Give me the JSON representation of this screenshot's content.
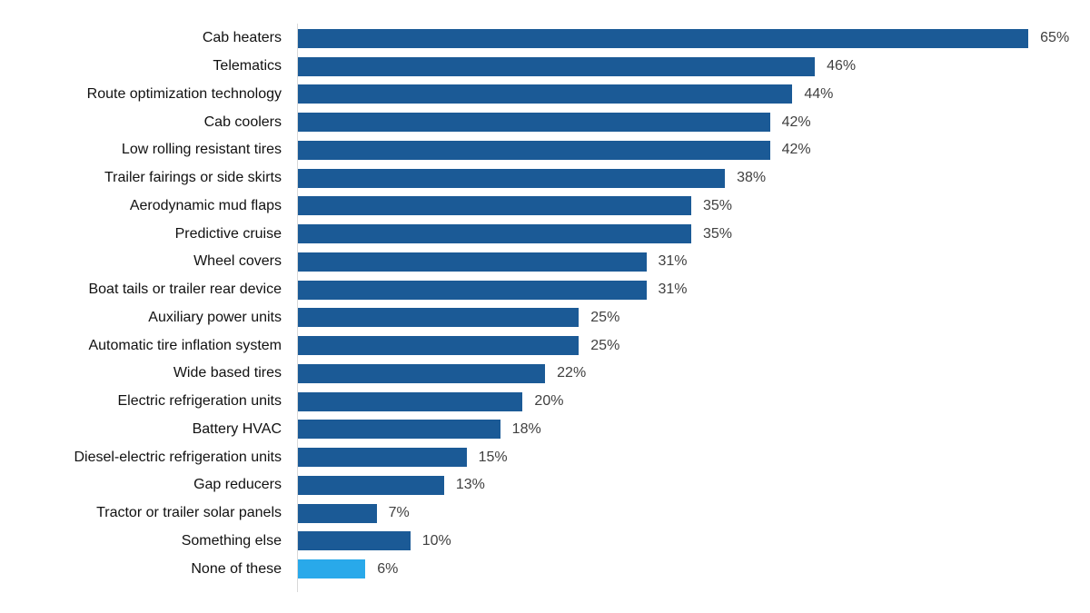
{
  "chart_data": {
    "type": "bar",
    "orientation": "horizontal",
    "title": "",
    "xlabel": "",
    "ylabel": "",
    "grid": false,
    "legend": null,
    "xlim": [
      0,
      70
    ],
    "categories": [
      "Cab heaters",
      "Telematics",
      "Route optimization technology",
      "Cab coolers",
      "Low rolling resistant tires",
      "Trailer fairings or side skirts",
      "Aerodynamic mud flaps",
      "Predictive cruise",
      "Wheel covers",
      "Boat tails or trailer rear device",
      "Auxiliary power units",
      "Automatic tire inflation system",
      "Wide based tires",
      "Electric refrigeration units",
      "Battery HVAC",
      "Diesel-electric refrigeration units",
      "Gap reducers",
      "Tractor or trailer solar panels",
      "Something else",
      "None of these"
    ],
    "values": [
      65,
      46,
      44,
      42,
      42,
      38,
      35,
      35,
      31,
      31,
      25,
      25,
      22,
      20,
      18,
      15,
      13,
      7,
      10,
      6
    ],
    "value_labels": [
      "65%",
      "46%",
      "44%",
      "42%",
      "42%",
      "38%",
      "35%",
      "35%",
      "31%",
      "31%",
      "25%",
      "25%",
      "22%",
      "20%",
      "18%",
      "15%",
      "13%",
      "7%",
      "10%",
      "6%"
    ],
    "highlight_index": 19,
    "colors": {
      "bar_default": "#1b5a96",
      "bar_highlight": "#29a9ea",
      "label_text": "#111111",
      "value_text": "#404040",
      "axis_line": "#d9d9d9"
    }
  }
}
